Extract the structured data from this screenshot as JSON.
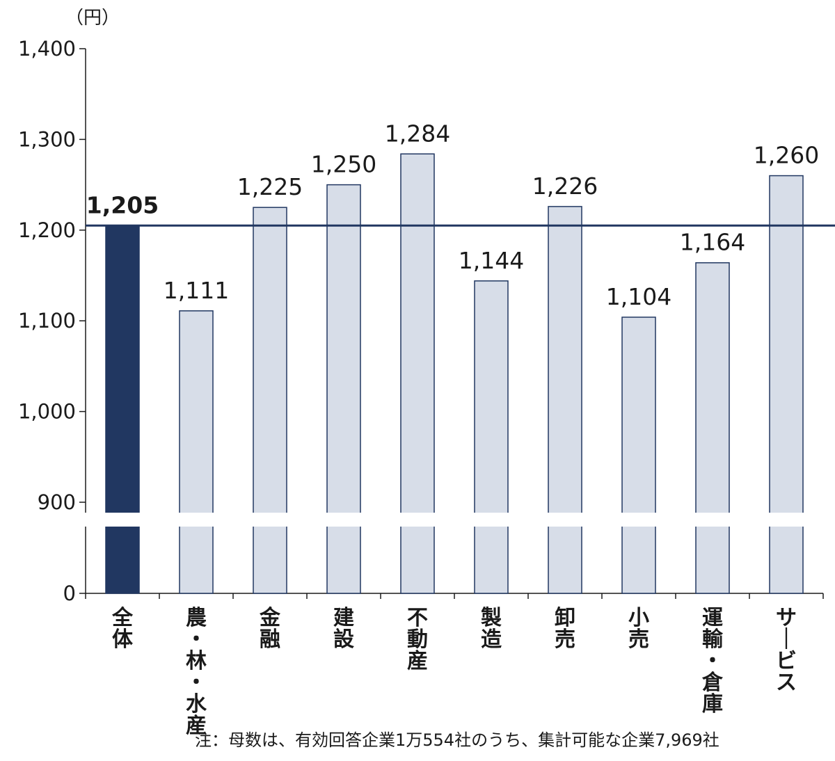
{
  "chart_data": {
    "type": "bar",
    "unit": "（円）",
    "categories": [
      "全体",
      "農・林・水産",
      "金融",
      "建設",
      "不動産",
      "製造",
      "卸売",
      "小売",
      "運輸・倉庫",
      "サービス"
    ],
    "values": [
      1205,
      1111,
      1225,
      1250,
      1284,
      1144,
      1226,
      1104,
      1164,
      1260
    ],
    "value_labels": [
      "1,205",
      "1,111",
      "1,225",
      "1,250",
      "1,284",
      "1,144",
      "1,226",
      "1,104",
      "1,164",
      "1,260"
    ],
    "highlight_index": 0,
    "reference_line": 1205,
    "yticks": [
      1400,
      1300,
      1200,
      1100,
      1000,
      900,
      0
    ],
    "ytick_labels": [
      "1,400",
      "1,300",
      "1,200",
      "1,100",
      "1,000",
      "900",
      "0"
    ],
    "ylim": [
      900,
      1400
    ],
    "axis_break": "between 0 and 900",
    "grid": false,
    "colors": {
      "highlight": "#213761",
      "bar": "#d7dde8",
      "bar_edge": "#213761",
      "reference_line": "#213761"
    }
  },
  "note": "注：母数は、有効回答企業1万554社のうち、集計可能な企業7,969社"
}
